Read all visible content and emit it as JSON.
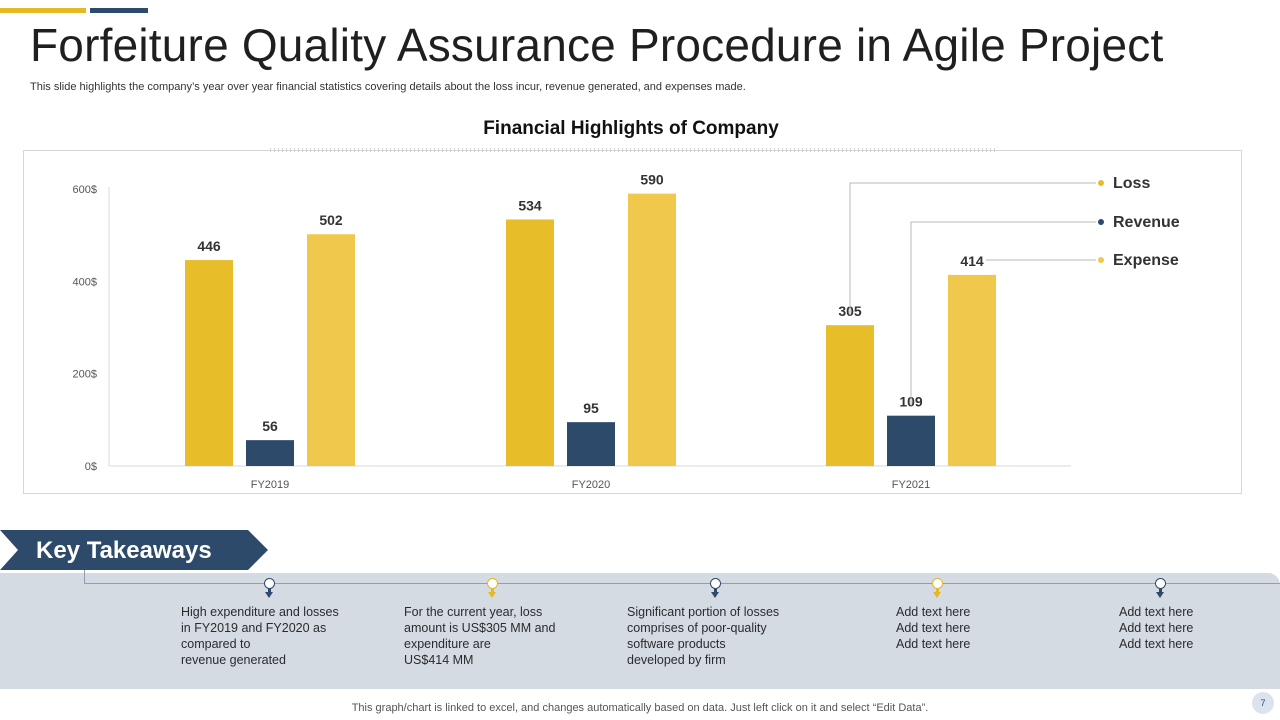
{
  "header": {
    "title": "Forfeiture Quality Assurance Procedure in Agile Project",
    "subtitle": "This slide highlights the company’s year over year financial statistics covering details about the loss incur, revenue generated, and expenses made."
  },
  "colors": {
    "loss": "#e8bd2a",
    "revenue": "#2e4a6b",
    "expense": "#f0c94c",
    "accent": "#e5b925",
    "navy": "#2e4a6b"
  },
  "chart_data": {
    "type": "bar",
    "title": "Financial Highlights of Company",
    "categories": [
      "FY2019",
      "FY2020",
      "FY2021"
    ],
    "series": [
      {
        "name": "Loss",
        "values": [
          446,
          534,
          305
        ]
      },
      {
        "name": "Revenue",
        "values": [
          56,
          95,
          109
        ]
      },
      {
        "name": "Expense",
        "values": [
          502,
          590,
          414
        ]
      }
    ],
    "yticks": [
      "0$",
      "200$",
      "400$",
      "600$"
    ],
    "ylim": [
      0,
      600
    ],
    "xlabel": "",
    "ylabel": "",
    "legend_position": "right"
  },
  "takeaways": {
    "label": "Key Takeaways",
    "items": [
      {
        "text": "High expenditure and losses\nin FY2019 and FY2020 as\ncompared to\nrevenue generated"
      },
      {
        "text": "For the current year, loss\namount is US$305 MM and\nexpenditure are\nUS$414 MM"
      },
      {
        "text": "Significant portion of losses\ncomprises of poor-quality\nsoftware products\ndeveloped  by firm"
      },
      {
        "text": "Add text here\nAdd text here\nAdd text here"
      },
      {
        "text": "Add text here\nAdd text here\nAdd text here"
      }
    ]
  },
  "footer": {
    "note": "This graph/chart is linked to excel,  and changes automatically based on data. Just left click on it and select “Edit Data”.",
    "page_number": "7"
  }
}
